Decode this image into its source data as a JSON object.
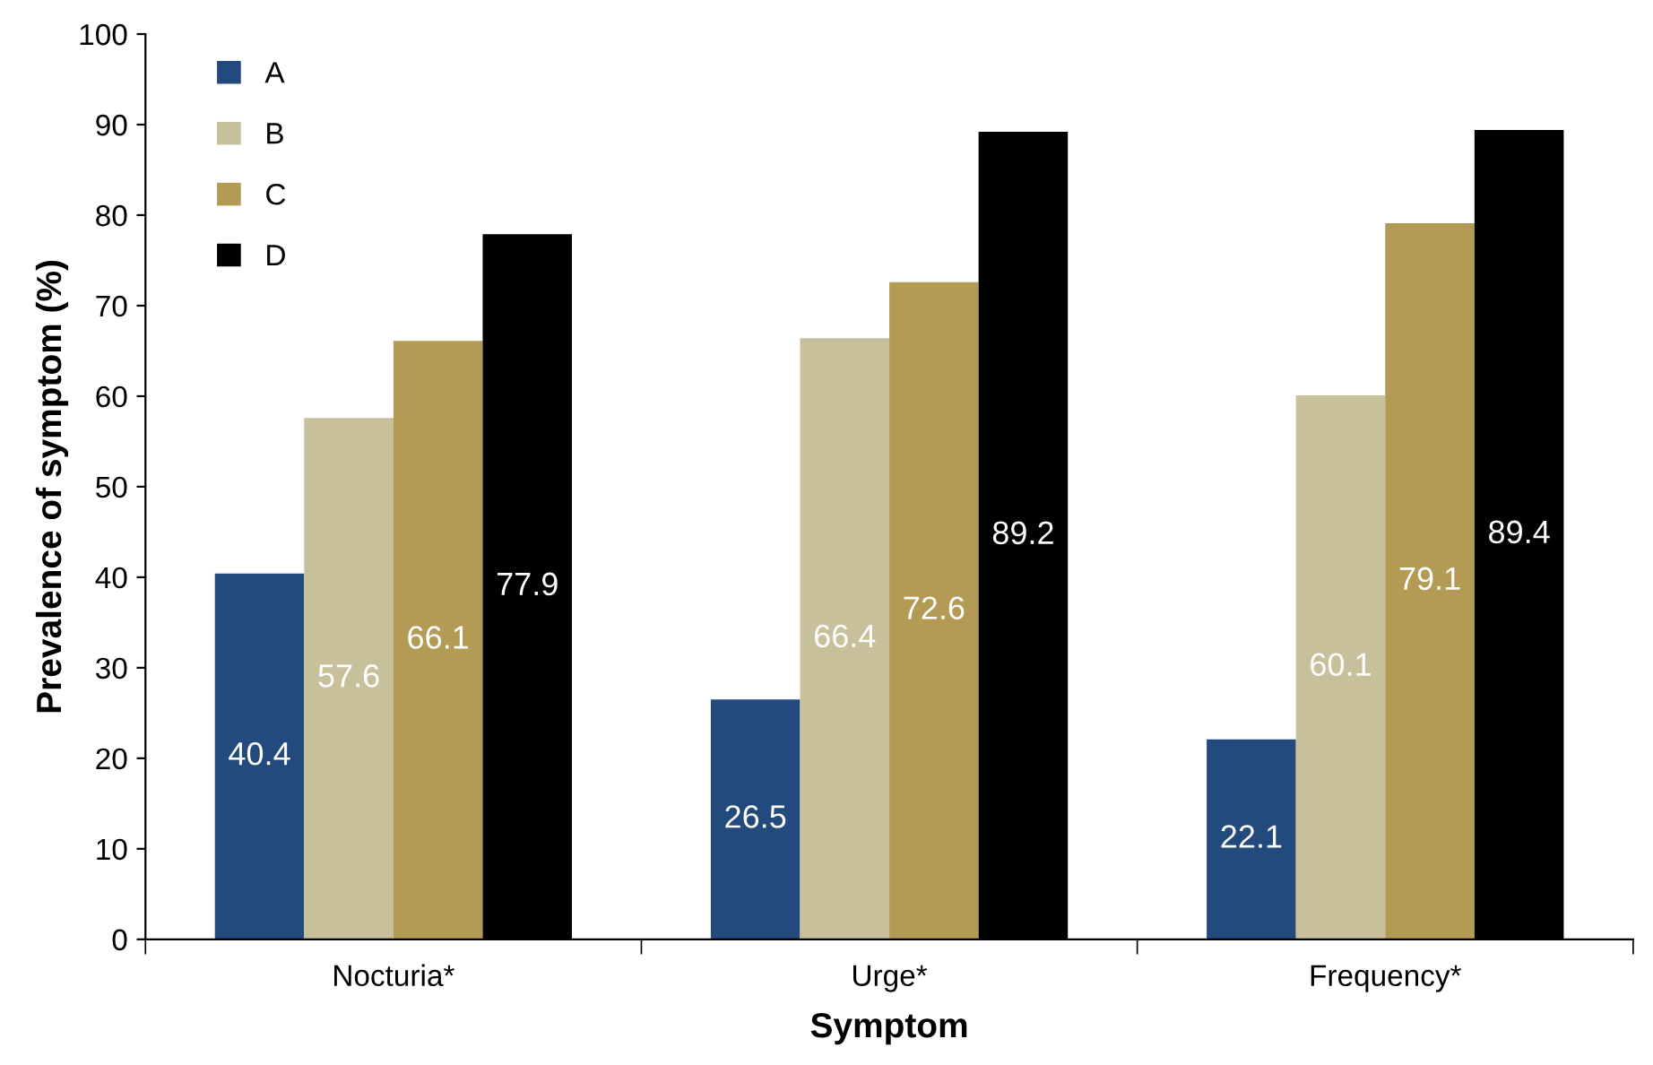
{
  "chart_data": {
    "type": "bar",
    "xlabel": "Symptom",
    "ylabel": "Prevalence of symptom (%)",
    "categories": [
      "Nocturia*",
      "Urge*",
      "Frequency*"
    ],
    "series": [
      {
        "name": "A",
        "color": "#234a7c",
        "values": [
          40.4,
          26.5,
          22.1
        ]
      },
      {
        "name": "B",
        "color": "#c8c09b",
        "values": [
          57.6,
          66.4,
          60.1
        ]
      },
      {
        "name": "C",
        "color": "#b39a55",
        "values": [
          66.1,
          72.6,
          79.1
        ]
      },
      {
        "name": "D",
        "color": "#000000",
        "values": [
          77.9,
          89.2,
          89.4
        ]
      }
    ],
    "ylim": [
      0,
      100
    ],
    "yticks": [
      0,
      10,
      20,
      30,
      40,
      50,
      60,
      70,
      80,
      90,
      100
    ],
    "data_labels": true,
    "grid": false,
    "legend": "top left"
  }
}
